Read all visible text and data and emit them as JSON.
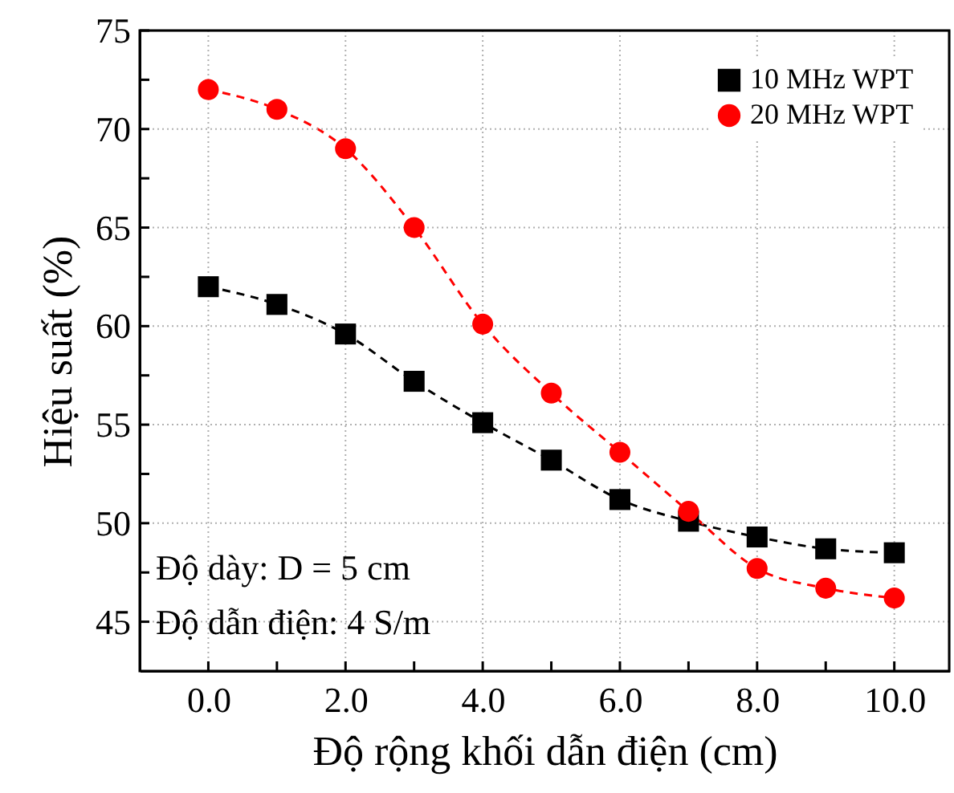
{
  "chart_data": {
    "type": "line",
    "xlabel": "Độ rộng khối dẫn điện (cm)",
    "ylabel": "Hiệu suất (%)",
    "x": [
      0,
      1,
      2,
      3,
      4,
      5,
      6,
      7,
      8,
      9,
      10
    ],
    "series": [
      {
        "name": "10 MHz WPT",
        "color": "#000000",
        "marker": "square",
        "values": [
          62,
          61.1,
          59.6,
          57.2,
          55.1,
          53.2,
          51.2,
          50.1,
          49.3,
          48.7,
          48.5
        ]
      },
      {
        "name": "20 MHz WPT",
        "color": "#ff0000",
        "marker": "circle",
        "values": [
          72,
          71,
          69,
          65,
          60.1,
          56.6,
          53.6,
          50.6,
          47.7,
          46.7,
          46.2
        ]
      }
    ],
    "xlim": [
      -1,
      10.8
    ],
    "ylim": [
      42.5,
      75
    ],
    "xticks": [
      {
        "value": 0,
        "label": "0.0"
      },
      {
        "value": 1,
        "label": null
      },
      {
        "value": 2,
        "label": "2.0"
      },
      {
        "value": 3,
        "label": null
      },
      {
        "value": 4,
        "label": "4.0"
      },
      {
        "value": 5,
        "label": null
      },
      {
        "value": 6,
        "label": "6.0"
      },
      {
        "value": 7,
        "label": null
      },
      {
        "value": 8,
        "label": "8.0"
      },
      {
        "value": 9,
        "label": null
      },
      {
        "value": 10,
        "label": "10.0"
      }
    ],
    "yticks": [
      45,
      {
        "value": 47.5,
        "label": null
      },
      50,
      {
        "value": 52.5,
        "label": null
      },
      55,
      {
        "value": 57.5,
        "label": null
      },
      60,
      {
        "value": 62.5,
        "label": null
      },
      65,
      {
        "value": 67.5,
        "label": null
      },
      70,
      {
        "value": 72.5,
        "label": null
      },
      75
    ],
    "annotations": [
      "Độ dày: D = 5 cm",
      "Độ dẫn điện: 4 S/m"
    ],
    "grid": true,
    "legend": "top right",
    "line_style": "dashed"
  }
}
